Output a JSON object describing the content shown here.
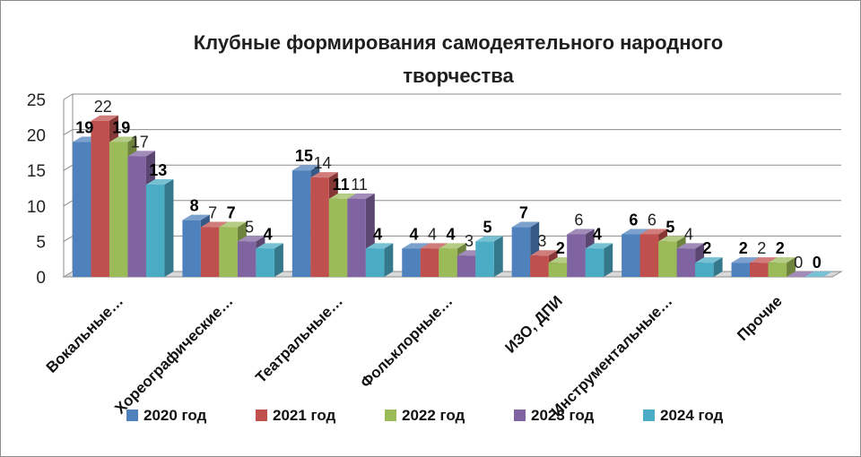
{
  "chart_data": {
    "type": "bar",
    "title": [
      "Клубные формирования самодеятельного народного",
      "творчества"
    ],
    "categories": [
      "Вокальные…",
      "Хореографические…",
      "Театральные…",
      "Фольклорные…",
      "ИЗО, ДПИ",
      "Инструментальные…",
      "Прочие"
    ],
    "series": [
      {
        "name": "2020 год",
        "values": [
          19,
          8,
          15,
          4,
          7,
          6,
          2
        ],
        "color": "#4f81bd",
        "label_style": "bold"
      },
      {
        "name": "2021 год",
        "values": [
          22,
          7,
          14,
          4,
          3,
          6,
          2
        ],
        "color": "#c0504d",
        "label_style": "normal"
      },
      {
        "name": "2022 год",
        "values": [
          19,
          7,
          11,
          4,
          2,
          5,
          2
        ],
        "color": "#9bbb59",
        "label_style": "bold"
      },
      {
        "name": "2023 год",
        "values": [
          17,
          5,
          11,
          3,
          6,
          4,
          0
        ],
        "color": "#8064a2",
        "label_style": "normal"
      },
      {
        "name": "2024 год",
        "values": [
          13,
          4,
          4,
          5,
          4,
          2,
          0
        ],
        "color": "#4bacc6",
        "label_style": "bold"
      }
    ],
    "ylim": [
      0,
      25
    ],
    "yticks": [
      0,
      5,
      10,
      15,
      20,
      25
    ],
    "grid": true,
    "legend_position": "bottom",
    "three_d": true
  }
}
